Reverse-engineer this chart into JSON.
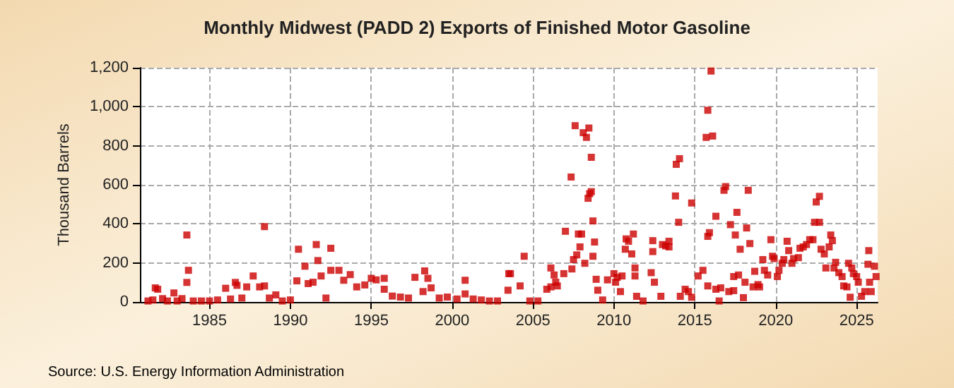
{
  "chart_data": {
    "type": "scatter",
    "title": "Monthly Midwest (PADD 2) Exports of Finished Motor Gasoline",
    "ylabel": "Thousand Barrels",
    "annotations": [
      "Source: U.S. Energy Information Administration"
    ],
    "xlim": [
      1980.7,
      2026.3
    ],
    "xticks": [
      1985,
      1990,
      1995,
      2000,
      2005,
      2010,
      2015,
      2020,
      2025
    ],
    "ylim": [
      0,
      1200
    ],
    "yticks": [
      0,
      200,
      400,
      600,
      800,
      {
        "value": 1000,
        "label": "1,000"
      },
      {
        "value": 1200,
        "label": "1,200"
      }
    ],
    "grid": true,
    "marker": "square",
    "series": [
      {
        "color": "#cc0000",
        "x": [
          1981.2,
          1981.5,
          1981.65,
          1981.8,
          1982.1,
          1982.4,
          1982.8,
          1983.0,
          1983.3,
          1983.6,
          1983.6,
          1983.7,
          1984.0,
          1984.5,
          1985.0,
          1985.5,
          1986.0,
          1986.3,
          1986.6,
          1986.7,
          1987.0,
          1987.3,
          1987.7,
          1988.1,
          1988.4,
          1988.4,
          1988.7,
          1989.1,
          1989.5,
          1990.0,
          1990.4,
          1990.5,
          1990.9,
          1991.1,
          1991.4,
          1991.6,
          1991.7,
          1991.9,
          1992.2,
          1992.5,
          1992.5,
          1993.0,
          1993.3,
          1993.7,
          1994.1,
          1994.6,
          1995.0,
          1995.3,
          1995.8,
          1995.8,
          1996.3,
          1996.8,
          1997.3,
          1997.7,
          1998.2,
          1998.3,
          1998.5,
          1998.7,
          1999.2,
          1999.7,
          2000.3,
          2000.8,
          2000.8,
          2001.3,
          2001.8,
          2002.3,
          2002.8,
          2003.45,
          2003.5,
          2003.6,
          2004.2,
          2004.45,
          2004.8,
          2005.3,
          2005.85,
          2006.1,
          2006.1,
          2006.3,
          2006.4,
          2006.5,
          2006.9,
          2007.0,
          2007.35,
          2007.4,
          2007.5,
          2007.6,
          2007.7,
          2007.8,
          2007.9,
          2008.0,
          2008.1,
          2008.2,
          2008.3,
          2008.4,
          2008.45,
          2008.5,
          2008.6,
          2008.6,
          2008.7,
          2008.7,
          2008.8,
          2008.9,
          2009.0,
          2009.3,
          2009.6,
          2010.0,
          2010.1,
          2010.2,
          2010.4,
          2010.5,
          2010.7,
          2010.75,
          2010.9,
          2011.1,
          2011.2,
          2011.3,
          2011.3,
          2011.4,
          2011.8,
          2012.3,
          2012.4,
          2012.4,
          2012.5,
          2012.9,
          2013.0,
          2013.2,
          2013.4,
          2013.4,
          2013.8,
          2013.85,
          2014.0,
          2014.05,
          2014.1,
          2014.4,
          2014.6,
          2014.8,
          2014.8,
          2015.2,
          2015.5,
          2015.7,
          2015.8,
          2015.8,
          2015.8,
          2015.9,
          2016.0,
          2016.1,
          2016.3,
          2016.3,
          2016.5,
          2016.6,
          2016.8,
          2016.9,
          2017.1,
          2017.2,
          2017.4,
          2017.4,
          2017.5,
          2017.6,
          2017.7,
          2017.8,
          2018.0,
          2018.1,
          2018.2,
          2018.3,
          2018.4,
          2018.6,
          2018.7,
          2018.9,
          2019.0,
          2019.2,
          2019.3,
          2019.5,
          2019.7,
          2019.8,
          2019.9,
          2020.1,
          2020.2,
          2020.4,
          2020.5,
          2020.7,
          2020.8,
          2021.0,
          2021.1,
          2021.4,
          2021.5,
          2021.7,
          2021.9,
          2022.1,
          2022.3,
          2022.4,
          2022.5,
          2022.7,
          2022.7,
          2022.8,
          2023.0,
          2023.1,
          2023.3,
          2023.4,
          2023.5,
          2023.6,
          2023.7,
          2023.9,
          2024.1,
          2024.2,
          2024.4,
          2024.5,
          2024.6,
          2024.7,
          2024.8,
          2025.0,
          2025.1,
          2025.3,
          2025.5,
          2025.7,
          2025.75,
          2025.8,
          2025.9,
          2026.1,
          2026.2
        ],
        "values": [
          5,
          10,
          72,
          65,
          17,
          5,
          46,
          5,
          17,
          100,
          343,
          162,
          5,
          5,
          5,
          10,
          70,
          15,
          100,
          85,
          20,
          77,
          133,
          77,
          386,
          82,
          20,
          36,
          5,
          10,
          108,
          270,
          183,
          94,
          101,
          294,
          212,
          133,
          20,
          275,
          162,
          162,
          111,
          140,
          77,
          87,
          121,
          113,
          121,
          65,
          30,
          25,
          20,
          126,
          53,
          159,
          121,
          72,
          20,
          25,
          15,
          111,
          41,
          15,
          10,
          5,
          5,
          60,
          145,
          145,
          82,
          234,
          5,
          5,
          65,
          174,
          77,
          138,
          101,
          82,
          145,
          362,
          640,
          169,
          217,
          903,
          241,
          348,
          282,
          348,
          867,
          198,
          843,
          531,
          891,
          555,
          741,
          565,
          234,
          415,
          307,
          116,
          60,
          10,
          113,
          145,
          101,
          126,
          53,
          133,
          270,
          323,
          311,
          246,
          348,
          174,
          133,
          29,
          5,
          150,
          314,
          258,
          101,
          29,
          294,
          287,
          311,
          282,
          543,
          705,
          408,
          734,
          29,
          65,
          53,
          507,
          24,
          133,
          162,
          843,
          82,
          336,
          982,
          355,
          1183,
          850,
          65,
          439,
          5,
          72,
          572,
          591,
          53,
          396,
          58,
          130,
          343,
          459,
          138,
          270,
          22,
          101,
          379,
          572,
          299,
          77,
          157,
          89,
          77,
          217,
          162,
          138,
          319,
          234,
          222,
          130,
          162,
          198,
          217,
          311,
          263,
          198,
          222,
          227,
          275,
          282,
          294,
          319,
          319,
          408,
          512,
          541,
          408,
          270,
          246,
          174,
          282,
          343,
          314,
          174,
          203,
          150,
          130,
          82,
          77,
          198,
          24,
          174,
          145,
          130,
          101,
          29,
          53,
          193,
          263,
          101,
          53,
          183,
          130
        ]
      }
    ]
  }
}
